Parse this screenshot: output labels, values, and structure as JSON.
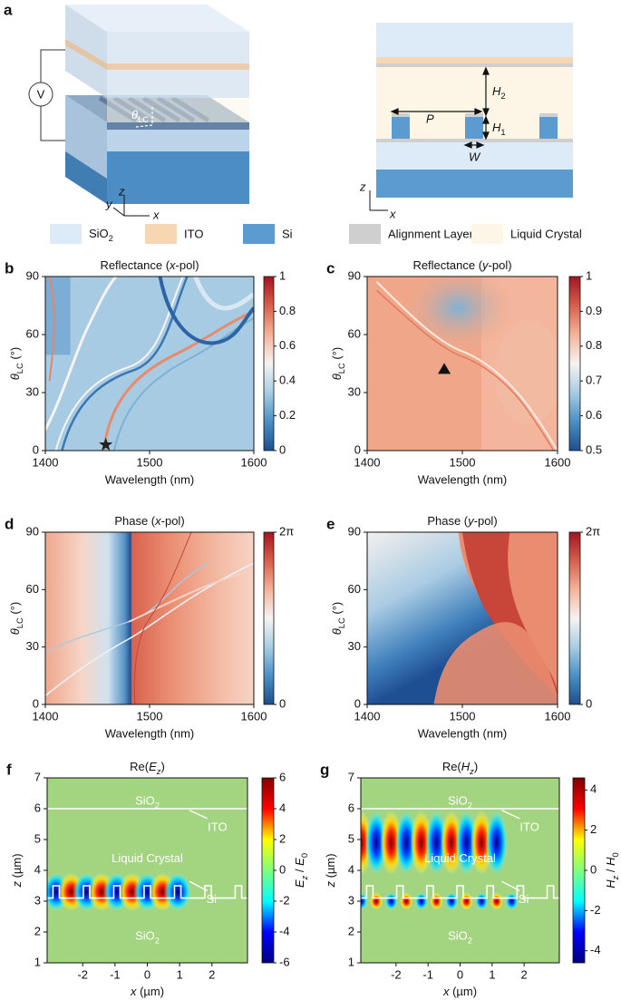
{
  "panel_a": {
    "label": "a",
    "voltage": "V",
    "theta": [
      {
        "t": "θ",
        "i": true
      },
      {
        "t": "LC",
        "sub": true
      }
    ],
    "axis_x": "x",
    "axis_y": "y",
    "axis_z": "z",
    "period": "P",
    "h2": [
      {
        "t": "H",
        "i": true
      },
      {
        "t": "2",
        "sub": true
      }
    ],
    "h1": [
      {
        "t": "H",
        "i": true
      },
      {
        "t": "1",
        "sub": true
      }
    ],
    "width": "W",
    "axis_z_right": "z",
    "axis_x_right": "x"
  },
  "legend": [
    {
      "name": [
        {
          "t": "SiO"
        },
        {
          "t": "2",
          "sub": true
        }
      ],
      "color": "#dcebf7"
    },
    {
      "name": "ITO",
      "color": "#f7d7b3"
    },
    {
      "name": "Si",
      "color": "#5b9bd0"
    },
    {
      "name": "Alignment Layer",
      "color": "#cfcfcf"
    },
    {
      "name": "Liquid Crystal",
      "color": "#fdf5e6"
    }
  ],
  "chart_data": [
    {
      "type": "heatmap",
      "label": "b",
      "title": [
        {
          "t": "Reflectance ("
        },
        {
          "t": "x",
          "i": true
        },
        {
          "t": "-pol)"
        }
      ],
      "xlabel": "Wavelength (nm)",
      "ylabel": [
        {
          "t": "θ",
          "i": true
        },
        {
          "t": "LC",
          "sub": true
        },
        {
          "t": " (°)"
        }
      ],
      "xlim": [
        1400,
        1600
      ],
      "xticks": [
        1400,
        1500,
        1600
      ],
      "ylim": [
        0,
        90
      ],
      "yticks": [
        0,
        30,
        60,
        90
      ],
      "colormap": "RdBu",
      "clim": [
        0,
        1
      ],
      "cticks": [
        0,
        0.2,
        0.4,
        0.6,
        0.8,
        1
      ],
      "markers": [
        {
          "x": 1458,
          "y": 3,
          "shape": "star",
          "color": "#222222"
        }
      ]
    },
    {
      "type": "heatmap",
      "label": "c",
      "title": [
        {
          "t": "Reflectance ("
        },
        {
          "t": "y",
          "i": true
        },
        {
          "t": "-pol)"
        }
      ],
      "xlabel": "Wavelength (nm)",
      "ylabel": [
        {
          "t": "θ",
          "i": true
        },
        {
          "t": "LC",
          "sub": true
        },
        {
          "t": " (°)"
        }
      ],
      "xlim": [
        1400,
        1600
      ],
      "xticks": [
        1400,
        1500,
        1600
      ],
      "ylim": [
        0,
        90
      ],
      "yticks": [
        0,
        30,
        60,
        90
      ],
      "colormap": "RdBu",
      "clim": [
        0.5,
        1
      ],
      "cticks": [
        0.5,
        0.6,
        0.7,
        0.8,
        0.9,
        1
      ],
      "markers": [
        {
          "x": 1481,
          "y": 42,
          "shape": "triangle",
          "color": "#111111"
        }
      ]
    },
    {
      "type": "heatmap",
      "label": "d",
      "title": [
        {
          "t": "Phase ("
        },
        {
          "t": "x",
          "i": true
        },
        {
          "t": "-pol)"
        }
      ],
      "xlabel": "Wavelength (nm)",
      "ylabel": [
        {
          "t": "θ",
          "i": true
        },
        {
          "t": "LC",
          "sub": true
        },
        {
          "t": " (°)"
        }
      ],
      "xlim": [
        1400,
        1600
      ],
      "xticks": [
        1400,
        1500,
        1600
      ],
      "ylim": [
        0,
        90
      ],
      "yticks": [
        0,
        30,
        60,
        90
      ],
      "colormap": "RdBu",
      "clim": [
        0,
        6.2832
      ],
      "cticks": [
        0,
        {
          "value": 6.2832,
          "label": "2π"
        }
      ]
    },
    {
      "type": "heatmap",
      "label": "e",
      "title": [
        {
          "t": "Phase ("
        },
        {
          "t": "y",
          "i": true
        },
        {
          "t": "-pol)"
        }
      ],
      "xlabel": "Wavelength (nm)",
      "ylabel": [
        {
          "t": "θ",
          "i": true
        },
        {
          "t": "LC",
          "sub": true
        },
        {
          "t": " (°)"
        }
      ],
      "xlim": [
        1400,
        1600
      ],
      "xticks": [
        1400,
        1500,
        1600
      ],
      "ylim": [
        0,
        90
      ],
      "yticks": [
        0,
        30,
        60,
        90
      ],
      "colormap": "RdBu",
      "clim": [
        0,
        6.2832
      ],
      "cticks": [
        0,
        {
          "value": 6.2832,
          "label": "2π"
        }
      ]
    },
    {
      "type": "field",
      "label": "f",
      "title": [
        {
          "t": "Re("
        },
        {
          "t": "E",
          "i": true
        },
        {
          "t": "z",
          "i": true,
          "sub": true
        },
        {
          "t": ")"
        }
      ],
      "xlabel": [
        {
          "t": "x",
          "i": true
        },
        {
          "t": " (µm)"
        }
      ],
      "ylabel": [
        {
          "t": "z",
          "i": true
        },
        {
          "t": " (µm)"
        }
      ],
      "xlim": [
        -3.1,
        3.1
      ],
      "xticks": [
        -2,
        -1,
        0,
        1,
        2
      ],
      "ylim": [
        1,
        7
      ],
      "yticks": [
        1,
        2,
        3,
        4,
        5,
        6,
        7
      ],
      "colormap": "jet",
      "clim": [
        -6,
        6
      ],
      "cticks": [
        -6,
        -4,
        -2,
        0,
        2,
        4,
        6
      ],
      "clabel": [
        {
          "t": "E",
          "i": true
        },
        {
          "t": "z",
          "i": true,
          "sub": true
        },
        {
          "t": " / "
        },
        {
          "t": "E",
          "i": true
        },
        {
          "t": "0",
          "sub": true
        }
      ],
      "annotations": [
        [
          {
            "t": "SiO"
          },
          {
            "t": "2",
            "sub": true
          }
        ],
        "ITO",
        "Liquid Crystal",
        "Si",
        [
          {
            "t": "SiO"
          },
          {
            "t": "2",
            "sub": true
          }
        ]
      ]
    },
    {
      "type": "field",
      "label": "g",
      "title": [
        {
          "t": "Re("
        },
        {
          "t": "H",
          "i": true
        },
        {
          "t": "z",
          "i": true,
          "sub": true
        },
        {
          "t": ")"
        }
      ],
      "xlabel": [
        {
          "t": "x",
          "i": true
        },
        {
          "t": " (µm)"
        }
      ],
      "ylabel": [
        {
          "t": "z",
          "i": true
        },
        {
          "t": " (µm)"
        }
      ],
      "xlim": [
        -3.1,
        3.1
      ],
      "xticks": [
        -2,
        -1,
        0,
        1,
        2
      ],
      "ylim": [
        1,
        7
      ],
      "yticks": [
        1,
        2,
        3,
        4,
        5,
        6,
        7
      ],
      "colormap": "jet",
      "clim": [
        -4.6,
        4.6
      ],
      "cticks": [
        -4,
        -2,
        0,
        2,
        4
      ],
      "clabel": [
        {
          "t": "H",
          "i": true
        },
        {
          "t": "z",
          "i": true,
          "sub": true
        },
        {
          "t": " / "
        },
        {
          "t": "H",
          "i": true
        },
        {
          "t": "0",
          "sub": true
        }
      ],
      "annotations": [
        [
          {
            "t": "SiO"
          },
          {
            "t": "2",
            "sub": true
          }
        ],
        "ITO",
        "Liquid Crystal",
        "Si",
        [
          {
            "t": "SiO"
          },
          {
            "t": "2",
            "sub": true
          }
        ]
      ]
    }
  ]
}
